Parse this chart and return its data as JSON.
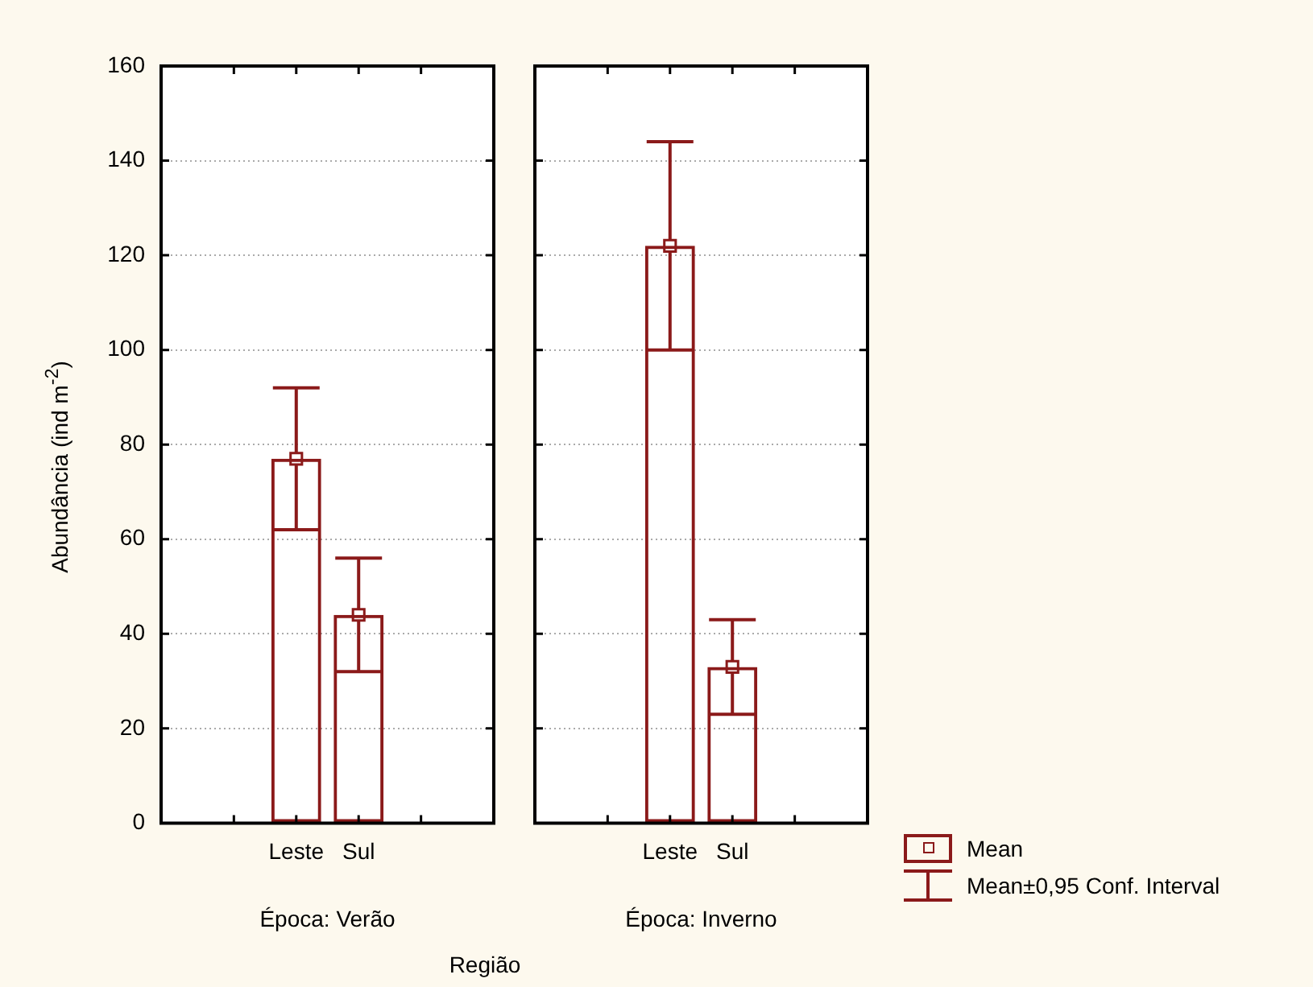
{
  "chart_data": [
    {
      "type": "bar",
      "title": "Época: Verão",
      "xlabel": "Região",
      "ylabel": "Abundância (ind m$^{-2}$)",
      "categories": [
        "Leste",
        "Sul"
      ],
      "series": [
        {
          "color": "#8b1a1a",
          "values": [
            77,
            44
          ],
          "errors": [
            [
              62,
              92
            ],
            [
              32,
              56
            ]
          ]
        },
        {
          "type": "scatter",
          "color": "#8b1a1a",
          "x": [
            "Leste",
            "Sul"
          ],
          "values": [
            77,
            44
          ]
        }
      ],
      "ylim": [
        0,
        160
      ],
      "yticks": [
        0,
        20,
        40,
        60,
        80,
        100,
        120,
        140,
        160
      ],
      "grid": "y",
      "marker": "square"
    },
    {
      "type": "bar",
      "title": "Época: Inverno",
      "categories": [
        "Leste",
        "Sul"
      ],
      "series": [
        {
          "color": "#8b1a1a",
          "values": [
            122,
            33
          ],
          "errors": [
            [
              100,
              144
            ],
            [
              23,
              43
            ]
          ]
        },
        {
          "type": "scatter",
          "name": "Mean",
          "color": "#8b1a1a",
          "x": [
            "Leste",
            "Sul"
          ],
          "values": [
            122,
            33
          ]
        }
      ],
      "ylim": [
        0,
        160
      ],
      "yticks": [
        0,
        20,
        40,
        60,
        80,
        100,
        120,
        140,
        160
      ],
      "grid": "y",
      "marker": "square",
      "tick_labels": "x",
      "legend": "bottom right",
      "annotations": [
        "Mean±0,95 Conf. Interval"
      ]
    }
  ]
}
